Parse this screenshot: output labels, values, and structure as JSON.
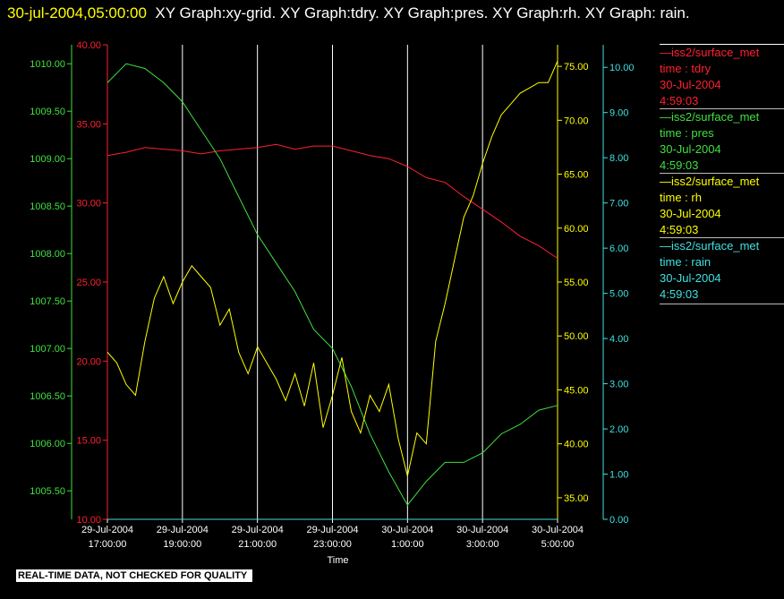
{
  "header": {
    "timestamp": "30-jul-2004,05:00:00",
    "titles": "XY Graph:xy-grid.  XY Graph:tdry.  XY Graph:pres.  XY Graph:rh.  XY Graph: rain."
  },
  "footer": {
    "quality_note": "REAL-TIME DATA, NOT CHECKED FOR QUALITY"
  },
  "legend": [
    {
      "source": "iss2/surface_met",
      "label": "time : tdry",
      "date": "30-Jul-2004",
      "time": "4:59:03",
      "color": "#ff2030"
    },
    {
      "source": "iss2/surface_met",
      "label": "time : pres",
      "date": "30-Jul-2004",
      "time": "4:59:03",
      "color": "#40e040"
    },
    {
      "source": "iss2/surface_met",
      "label": "time : rh",
      "date": "30-Jul-2004",
      "time": "4:59:03",
      "color": "#ffff00"
    },
    {
      "source": "iss2/surface_met",
      "label": "time : rain",
      "date": "30-Jul-2004",
      "time": "4:59:03",
      "color": "#40e0e0"
    }
  ],
  "chart_data": {
    "type": "line",
    "xlabel": "Time",
    "x_ticks": [
      {
        "l1": "29-Jul-2004",
        "l2": "17:00:00"
      },
      {
        "l1": "29-Jul-2004",
        "l2": "19:00:00"
      },
      {
        "l1": "29-Jul-2004",
        "l2": "21:00:00"
      },
      {
        "l1": "29-Jul-2004",
        "l2": "23:00:00"
      },
      {
        "l1": "30-Jul-2004",
        "l2": "1:00:00"
      },
      {
        "l1": "30-Jul-2004",
        "l2": "3:00:00"
      },
      {
        "l1": "30-Jul-2004",
        "l2": "5:00:00"
      }
    ],
    "x_range_hours": [
      17,
      29
    ],
    "grid": "vertical",
    "axes": {
      "tdry": {
        "range": [
          10,
          40
        ],
        "ticks": [
          "10.00",
          "15.00",
          "20.00",
          "25.00",
          "30.00",
          "35.00",
          "40.00"
        ],
        "color": "#ff2030",
        "side": "left-inner"
      },
      "pres": {
        "range": [
          1005.2,
          1010.2
        ],
        "ticks": [
          "1005.50",
          "1006.00",
          "1006.50",
          "1007.00",
          "1007.50",
          "1008.00",
          "1008.50",
          "1009.00",
          "1009.50",
          "1010.00"
        ],
        "color": "#40e040",
        "side": "left-outer"
      },
      "rh": {
        "range": [
          33,
          77
        ],
        "ticks": [
          "35.00",
          "40.00",
          "45.00",
          "50.00",
          "55.00",
          "60.00",
          "65.00",
          "70.00",
          "75.00"
        ],
        "color": "#ffff00",
        "side": "right-inner"
      },
      "rain": {
        "range": [
          0,
          10.5
        ],
        "ticks": [
          "0.00",
          "1.00",
          "2.00",
          "3.00",
          "4.00",
          "5.00",
          "6.00",
          "7.00",
          "8.00",
          "9.00",
          "10.00"
        ],
        "color": "#40e0e0",
        "side": "right-outer"
      }
    },
    "series": [
      {
        "name": "tdry",
        "axis": "tdry",
        "color": "#ff2030",
        "x": [
          17.0,
          17.5,
          18.0,
          18.5,
          19.0,
          19.5,
          20.0,
          20.5,
          21.0,
          21.5,
          22.0,
          22.5,
          23.0,
          23.5,
          24.0,
          24.5,
          25.0,
          25.5,
          26.0,
          26.5,
          27.0,
          27.5,
          28.0,
          28.5,
          29.0
        ],
        "y": [
          33.0,
          33.2,
          33.5,
          33.4,
          33.3,
          33.1,
          33.3,
          33.4,
          33.5,
          33.7,
          33.4,
          33.6,
          33.6,
          33.3,
          33.0,
          32.8,
          32.3,
          31.6,
          31.3,
          30.4,
          29.6,
          28.8,
          27.9,
          27.3,
          26.5
        ]
      },
      {
        "name": "pres",
        "axis": "pres",
        "color": "#40e040",
        "x": [
          17.0,
          17.5,
          18.0,
          18.5,
          19.0,
          19.5,
          20.0,
          20.5,
          21.0,
          21.5,
          22.0,
          22.5,
          23.0,
          23.5,
          24.0,
          24.5,
          25.0,
          25.5,
          26.0,
          26.5,
          27.0,
          27.5,
          28.0,
          28.5,
          29.0
        ],
        "y": [
          1009.8,
          1010.0,
          1009.95,
          1009.8,
          1009.6,
          1009.3,
          1009.0,
          1008.6,
          1008.2,
          1007.9,
          1007.6,
          1007.2,
          1007.0,
          1006.6,
          1006.1,
          1005.7,
          1005.35,
          1005.6,
          1005.8,
          1005.8,
          1005.9,
          1006.1,
          1006.2,
          1006.35,
          1006.4
        ]
      },
      {
        "name": "rh",
        "axis": "rh",
        "color": "#ffff00",
        "x": [
          17.0,
          17.25,
          17.5,
          17.75,
          18.0,
          18.25,
          18.5,
          18.75,
          19.0,
          19.25,
          19.5,
          19.75,
          20.0,
          20.25,
          20.5,
          20.75,
          21.0,
          21.25,
          21.5,
          21.75,
          22.0,
          22.25,
          22.5,
          22.75,
          23.0,
          23.25,
          23.5,
          23.75,
          24.0,
          24.25,
          24.5,
          24.75,
          25.0,
          25.25,
          25.5,
          25.75,
          26.0,
          26.25,
          26.5,
          26.75,
          27.0,
          27.25,
          27.5,
          27.75,
          28.0,
          28.25,
          28.5,
          28.75,
          29.0
        ],
        "y": [
          48.5,
          47.5,
          45.5,
          44.5,
          49.5,
          53.5,
          55.5,
          53.0,
          55.0,
          56.5,
          55.5,
          54.5,
          51.0,
          52.5,
          48.5,
          46.5,
          49.0,
          47.5,
          46.0,
          44.0,
          46.5,
          43.5,
          47.5,
          41.5,
          44.5,
          48.0,
          43.0,
          41.0,
          44.5,
          43.0,
          45.5,
          40.5,
          37.0,
          41.0,
          40.0,
          49.5,
          53.0,
          57.0,
          61.0,
          63.0,
          66.0,
          68.5,
          70.5,
          71.5,
          72.5,
          73.0,
          73.5,
          73.5,
          75.5
        ]
      },
      {
        "name": "rain",
        "axis": "rain",
        "color": "#40e0e0",
        "x": [
          17.0,
          29.0
        ],
        "y": [
          0.0,
          0.0
        ]
      }
    ]
  }
}
